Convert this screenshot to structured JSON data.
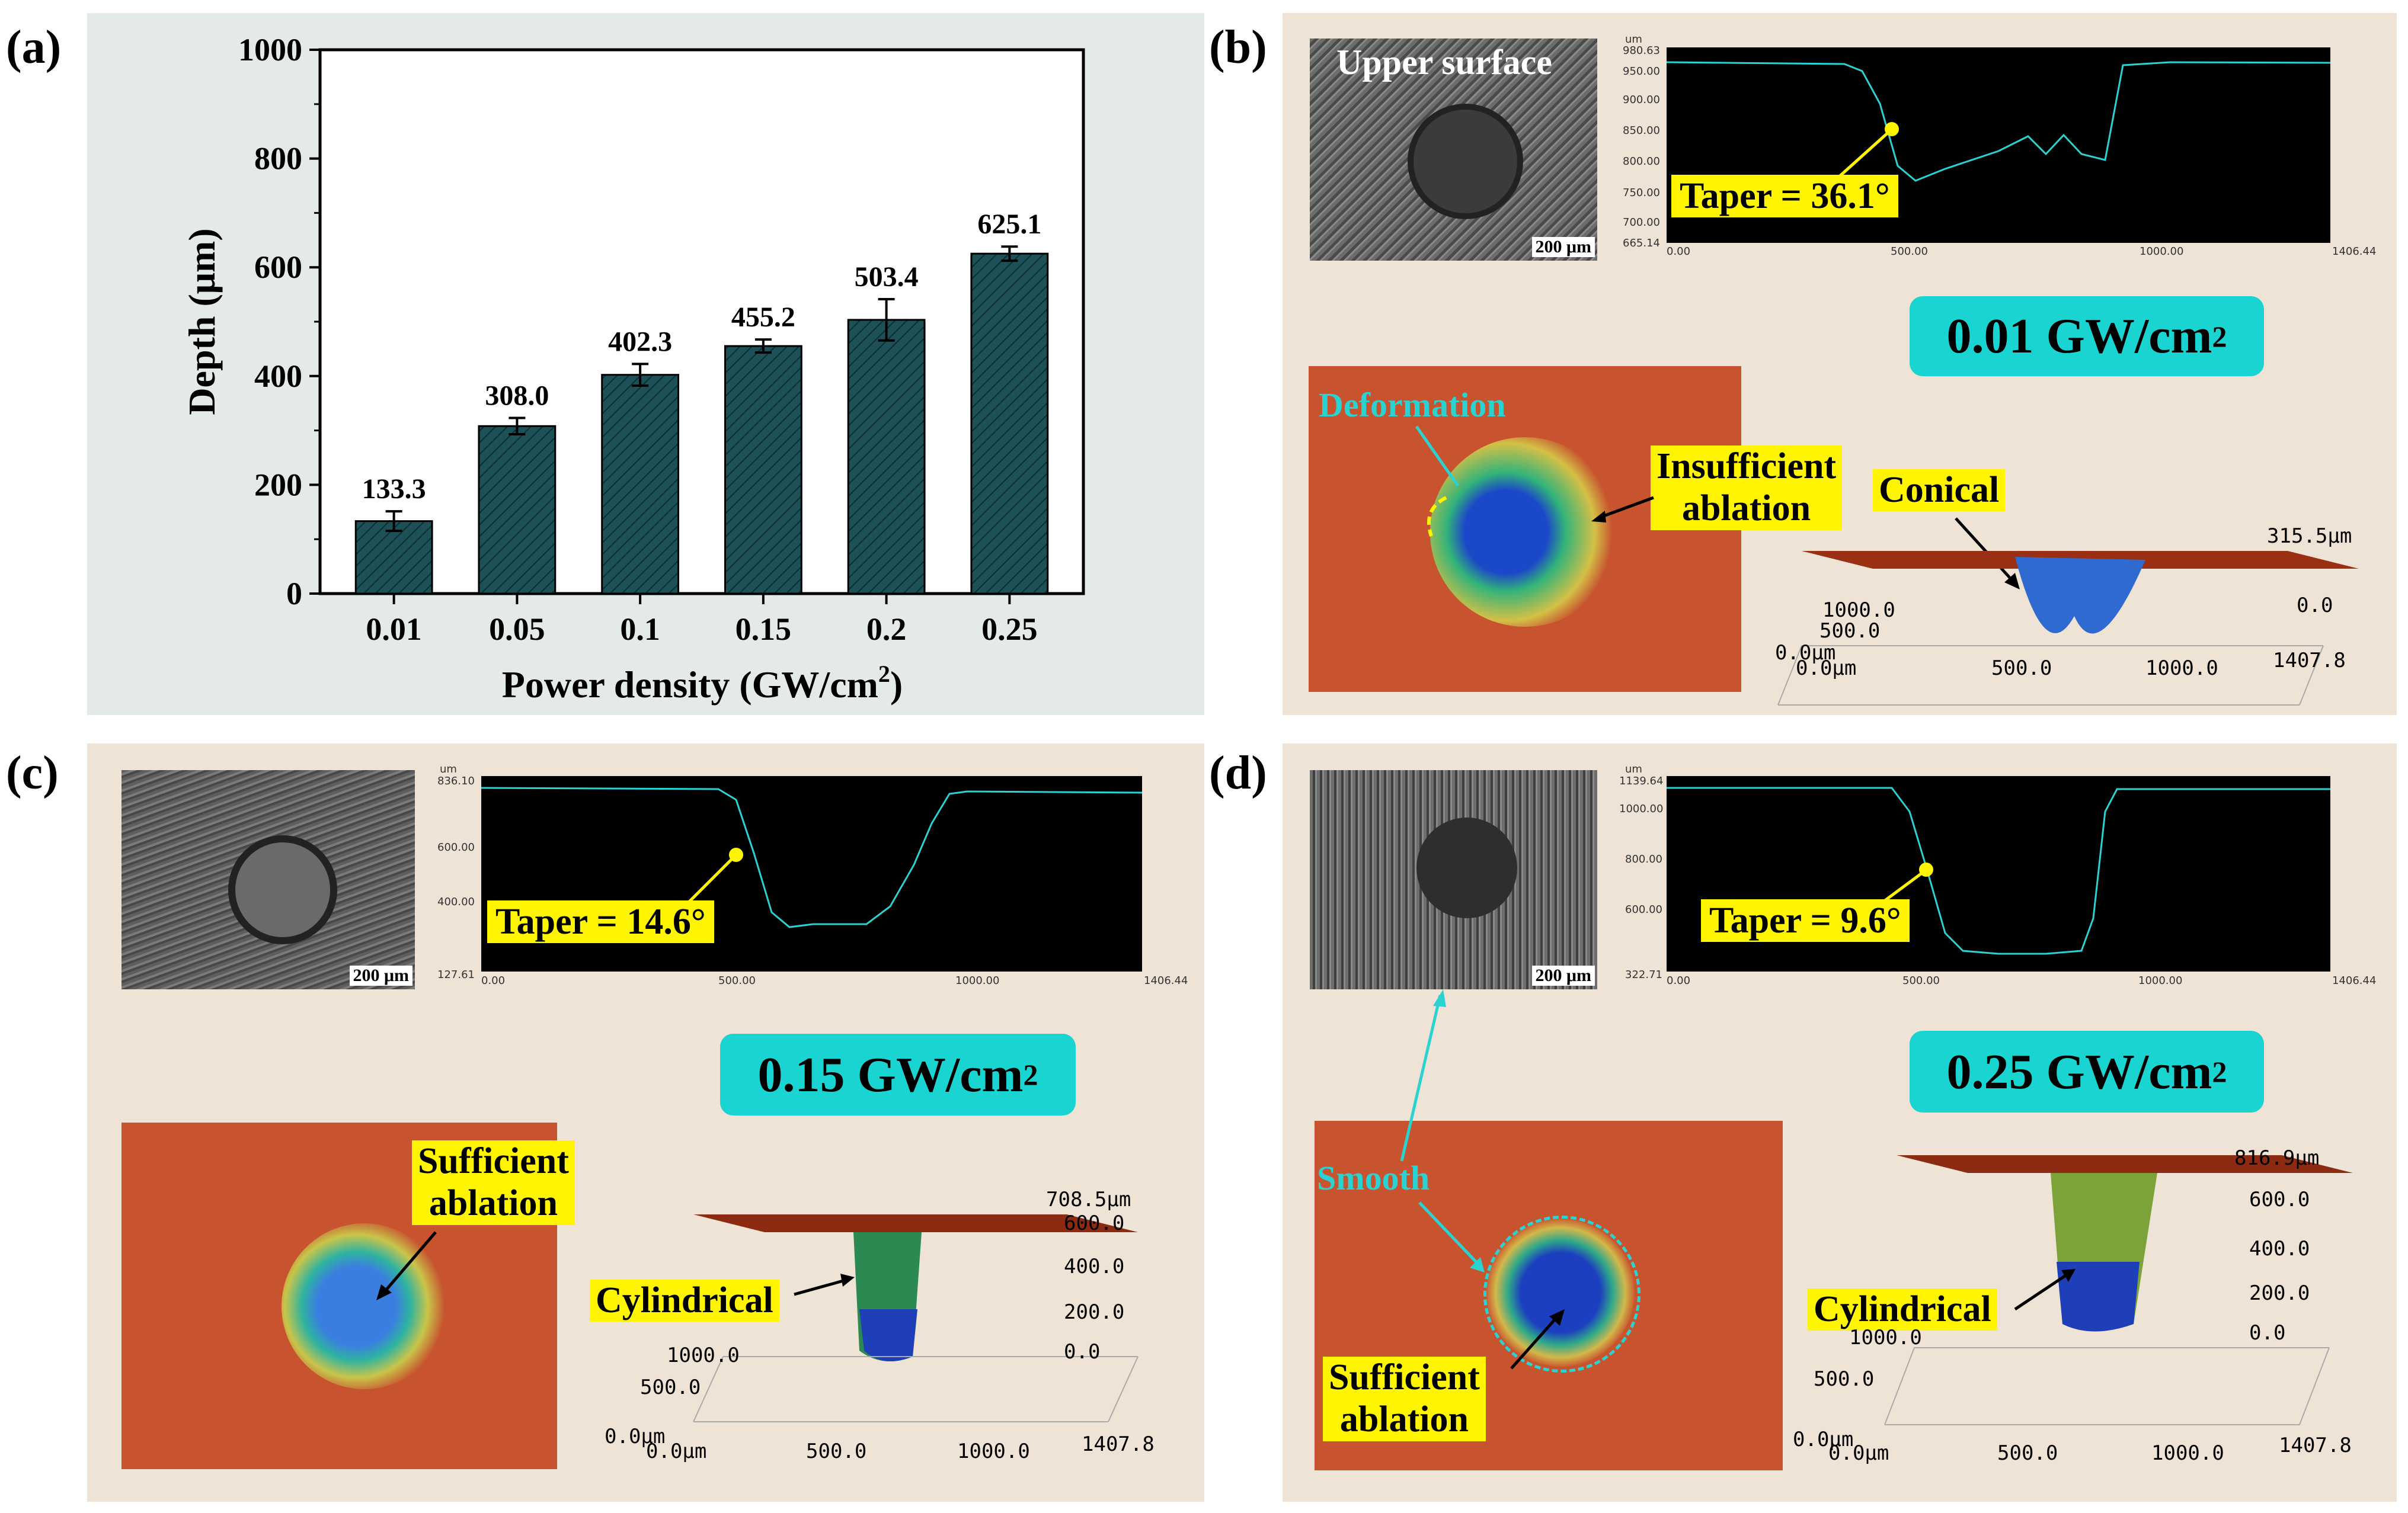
{
  "panels": {
    "a": {
      "label": "(a)"
    },
    "b": {
      "label": "(b)",
      "power_density": "0.01 GW/cm",
      "power_sup": "2",
      "taper": "Taper = 36.1°",
      "upper_surface": "Upper surface",
      "scale": "200 μm",
      "profile_y": [
        "980.63",
        "950.00",
        "900.00",
        "850.00",
        "800.00",
        "750.00",
        "700.00",
        "665.14"
      ],
      "profile_x": [
        "0.00",
        "500.00",
        "1000.00",
        "1406.44"
      ],
      "profile_unit": "um",
      "ann_deformation": "Deformation",
      "ann_insufficient_1": "Insufficient",
      "ann_insufficient_2": "ablation",
      "ann_shape": "Conical",
      "axes3d": {
        "z_top": "315.5μm",
        "z_zero": "0.0",
        "y_mid": "500.0",
        "y_top": "1000.0",
        "origin": "0.0μm",
        "origin2": "0.0μm",
        "x_mid": "500.0",
        "x_mid2": "1000.0",
        "x_end": "1407.8"
      }
    },
    "c": {
      "label": "(c)",
      "power_density": "0.15 GW/cm",
      "power_sup": "2",
      "taper": "Taper = 14.6°",
      "scale": "200 μm",
      "profile_y": [
        "836.10",
        "600.00",
        "400.00",
        "127.61"
      ],
      "profile_x": [
        "0.00",
        "500.00",
        "1000.00",
        "1406.44"
      ],
      "profile_unit": "um",
      "ann_sufficient_1": "Sufficient",
      "ann_sufficient_2": "ablation",
      "ann_shape": "Cylindrical",
      "axes3d": {
        "z_top": "708.5μm",
        "z_600": "600.0",
        "z_400": "400.0",
        "z_200": "200.0",
        "z_zero": "0.0",
        "y_top": "1000.0",
        "y_mid": "500.0",
        "origin": "0.0μm",
        "origin2": "0.0μm",
        "x_mid": "500.0",
        "x_mid2": "1000.0",
        "x_end": "1407.8"
      }
    },
    "d": {
      "label": "(d)",
      "power_density": "0.25 GW/cm",
      "power_sup": "2",
      "taper": "Taper = 9.6°",
      "scale": "200 μm",
      "profile_y": [
        "1139.64",
        "1000.00",
        "800.00",
        "600.00",
        "322.71"
      ],
      "profile_x": [
        "0.00",
        "500.00",
        "1000.00",
        "1406.44"
      ],
      "profile_unit": "um",
      "ann_smooth": "Smooth",
      "ann_sufficient_1": "Sufficient",
      "ann_sufficient_2": "ablation",
      "ann_shape": "Cylindrical",
      "axes3d": {
        "z_top": "816.9μm",
        "z_600": "600.0",
        "z_400": "400.0",
        "z_200": "200.0",
        "z_zero": "0.0",
        "y_top": "1000.0",
        "y_mid": "500.0",
        "origin": "0.0μm",
        "origin2": "0.0μm",
        "x_mid": "500.0",
        "x_mid2": "1000.0",
        "x_end": "1407.8"
      }
    }
  },
  "chart_data": {
    "type": "bar",
    "categories": [
      "0.01",
      "0.05",
      "0.1",
      "0.15",
      "0.2",
      "0.25"
    ],
    "values": [
      133.3,
      308.0,
      402.3,
      455.2,
      503.4,
      625.1
    ],
    "errors": [
      18,
      15,
      20,
      12,
      38,
      13
    ],
    "value_labels": [
      "133.3",
      "308.0",
      "402.3",
      "455.2",
      "503.4",
      "625.1"
    ],
    "xlabel": "Power density (GW/cm",
    "xlabel_sup": "2",
    "xlabel_end": ")",
    "ylabel": "Depth (μm)",
    "ylim": [
      0,
      1000
    ],
    "yticks": [
      "0",
      "200",
      "400",
      "600",
      "800",
      "1000"
    ],
    "bar_color": "#1d5157",
    "grid": false
  },
  "colors": {
    "panel_bg_a": "#e4ebe6",
    "panel_bg": "#efe3d6",
    "teal": "#19d4d0",
    "yellow": "#fff500",
    "cyan_line": "#2ad2d2"
  }
}
